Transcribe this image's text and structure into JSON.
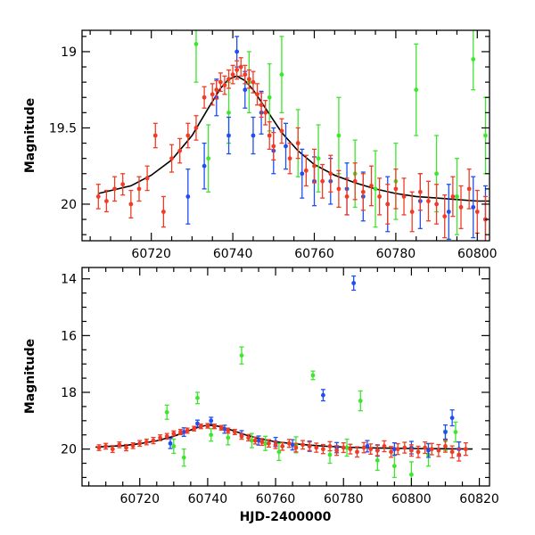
{
  "chart_data": [
    {
      "type": "scatter",
      "panel": "top",
      "xlabel": "",
      "ylabel": "Magnitude",
      "xlim": [
        60703,
        60803
      ],
      "ylim": [
        20.24,
        18.86
      ],
      "y_inverted": true,
      "x_ticks": [
        60720,
        60740,
        60760,
        60780,
        60800
      ],
      "x_tick_labels": [
        "60720",
        "60740",
        "60760",
        "60780",
        "60800"
      ],
      "y_ticks": [
        19,
        19.5,
        20
      ],
      "y_tick_labels": [
        "19",
        "19.5",
        "20"
      ],
      "grid": false,
      "colors": {
        "red": "#f03c24",
        "blue": "#1f4ff0",
        "green": "#3fe52e",
        "model": "#000000"
      },
      "model_curve": {
        "x": [
          60707,
          60715,
          60720,
          60725,
          60730,
          60734,
          60737,
          60739,
          60741,
          60743,
          60745,
          60748,
          60752,
          60756,
          60760,
          60765,
          60770,
          60775,
          60780,
          60785,
          60790,
          60795,
          60800,
          60803
        ],
        "y": [
          19.93,
          19.88,
          19.81,
          19.71,
          19.55,
          19.37,
          19.24,
          19.18,
          19.16,
          19.19,
          19.25,
          19.37,
          19.53,
          19.65,
          19.74,
          19.81,
          19.86,
          19.9,
          19.93,
          19.95,
          19.96,
          19.97,
          19.98,
          19.98
        ]
      },
      "series": [
        {
          "color": "red",
          "x": [
            60707,
            60709,
            60711,
            60713,
            60715,
            60717,
            60719,
            60721,
            60723,
            60725,
            60727,
            60729,
            60731,
            60733,
            60735,
            60736,
            60737,
            60738,
            60739,
            60740,
            60741,
            60742,
            60743,
            60744,
            60745,
            60746,
            60747,
            60748,
            60749,
            60750,
            60752,
            60754,
            60756,
            60758,
            60760,
            60762,
            60764,
            60766,
            60768,
            60770,
            60772,
            60774,
            60776,
            60778,
            60780,
            60782,
            60784,
            60786,
            60788,
            60790,
            60792,
            60794,
            60796,
            60798,
            60800,
            60802
          ],
          "y": [
            19.95,
            19.98,
            19.9,
            19.87,
            20.0,
            19.9,
            19.83,
            19.55,
            20.05,
            19.7,
            19.65,
            19.55,
            19.5,
            19.3,
            19.28,
            19.25,
            19.2,
            19.22,
            19.18,
            19.15,
            19.12,
            19.1,
            19.15,
            19.18,
            19.2,
            19.28,
            19.35,
            19.4,
            19.55,
            19.62,
            19.52,
            19.7,
            19.6,
            19.78,
            19.75,
            19.85,
            19.8,
            19.9,
            19.95,
            19.85,
            19.92,
            19.88,
            19.95,
            20.0,
            19.9,
            19.95,
            20.05,
            19.92,
            19.98,
            20.0,
            20.08,
            19.95,
            20.02,
            19.9,
            20.05,
            20.1
          ],
          "yerr": [
            0.08,
            0.07,
            0.08,
            0.07,
            0.09,
            0.08,
            0.08,
            0.08,
            0.1,
            0.09,
            0.08,
            0.08,
            0.08,
            0.07,
            0.07,
            0.06,
            0.06,
            0.06,
            0.06,
            0.06,
            0.06,
            0.06,
            0.06,
            0.06,
            0.07,
            0.07,
            0.08,
            0.08,
            0.09,
            0.09,
            0.08,
            0.1,
            0.1,
            0.1,
            0.11,
            0.11,
            0.12,
            0.12,
            0.12,
            0.12,
            0.12,
            0.13,
            0.12,
            0.13,
            0.13,
            0.12,
            0.13,
            0.12,
            0.13,
            0.13,
            0.14,
            0.13,
            0.14,
            0.13,
            0.14,
            0.15
          ]
        },
        {
          "color": "blue",
          "x": [
            60729,
            60733,
            60736,
            60739,
            60741,
            60743,
            60745,
            60747,
            60750,
            60753,
            60757,
            60760,
            60764,
            60768,
            60772,
            60778,
            60786,
            60793,
            60799,
            60802
          ],
          "y": [
            19.95,
            19.75,
            19.3,
            19.55,
            19.0,
            19.25,
            19.55,
            19.4,
            19.65,
            19.62,
            19.8,
            19.85,
            19.85,
            19.9,
            19.95,
            20.0,
            19.98,
            20.05,
            20.02,
            20.1
          ],
          "yerr": [
            0.18,
            0.15,
            0.12,
            0.12,
            0.1,
            0.12,
            0.12,
            0.14,
            0.15,
            0.15,
            0.16,
            0.16,
            0.15,
            0.17,
            0.16,
            0.18,
            0.18,
            0.18,
            0.2,
            0.22
          ]
        },
        {
          "color": "green",
          "x": [
            60731,
            60734,
            60739,
            60744,
            60749,
            60752,
            60756,
            60761,
            60766,
            60770,
            60775,
            60780,
            60785,
            60790,
            60795,
            60799,
            60802
          ],
          "y": [
            18.95,
            19.7,
            19.4,
            19.2,
            19.3,
            19.15,
            19.6,
            19.7,
            19.55,
            19.8,
            19.9,
            19.85,
            19.25,
            19.8,
            19.95,
            19.05,
            19.55
          ],
          "yerr": [
            0.25,
            0.22,
            0.2,
            0.2,
            0.22,
            0.25,
            0.22,
            0.22,
            0.25,
            0.22,
            0.25,
            0.25,
            0.3,
            0.25,
            0.25,
            0.2,
            0.25
          ]
        }
      ]
    },
    {
      "type": "scatter",
      "panel": "bottom",
      "xlabel": "HJD-2400000",
      "ylabel": "Magnitude",
      "xlim": [
        60703,
        60823
      ],
      "ylim": [
        21.3,
        13.6
      ],
      "y_inverted": true,
      "x_ticks": [
        60720,
        60740,
        60760,
        60780,
        60800,
        60820
      ],
      "x_tick_labels": [
        "60720",
        "60740",
        "60760",
        "60780",
        "60800",
        "60820"
      ],
      "y_ticks": [
        14,
        16,
        18,
        20
      ],
      "y_tick_labels": [
        "14",
        "16",
        "18",
        "20"
      ],
      "grid": false,
      "colors": {
        "red": "#f03c24",
        "blue": "#1f4ff0",
        "green": "#3fe52e",
        "model": "#000000"
      },
      "model_curve": {
        "x": [
          60707,
          60715,
          60720,
          60725,
          60730,
          60734,
          60737,
          60739,
          60741,
          60743,
          60745,
          60748,
          60752,
          60756,
          60760,
          60765,
          60770,
          60775,
          60780,
          60785,
          60790,
          60795,
          60800,
          60810,
          60818
        ],
        "y": [
          19.93,
          19.88,
          19.81,
          19.71,
          19.55,
          19.37,
          19.24,
          19.18,
          19.16,
          19.19,
          19.25,
          19.37,
          19.53,
          19.65,
          19.74,
          19.81,
          19.86,
          19.9,
          19.93,
          19.95,
          19.96,
          19.97,
          19.98,
          19.99,
          20.0
        ]
      },
      "series": [
        {
          "color": "red",
          "x": [
            60708,
            60710,
            60712,
            60714,
            60716,
            60718,
            60720,
            60722,
            60724,
            60726,
            60728,
            60730,
            60732,
            60734,
            60736,
            60738,
            60740,
            60742,
            60744,
            60746,
            60748,
            60750,
            60752,
            60754,
            60756,
            60758,
            60760,
            60762,
            60764,
            60766,
            60768,
            60770,
            60772,
            60774,
            60776,
            60778,
            60780,
            60782,
            60784,
            60786,
            60788,
            60790,
            60792,
            60794,
            60796,
            60798,
            60800,
            60802,
            60804,
            60806,
            60808,
            60810,
            60812,
            60814,
            60816
          ],
          "y": [
            19.95,
            19.9,
            20.0,
            19.85,
            19.95,
            19.88,
            19.8,
            19.75,
            19.7,
            19.6,
            19.55,
            19.45,
            19.4,
            19.35,
            19.28,
            19.2,
            19.18,
            19.2,
            19.25,
            19.35,
            19.4,
            19.55,
            19.6,
            19.7,
            19.75,
            19.8,
            19.85,
            19.9,
            19.8,
            19.95,
            19.85,
            19.9,
            19.95,
            20.0,
            19.9,
            20.05,
            19.95,
            20.0,
            20.1,
            19.95,
            20.0,
            20.05,
            19.9,
            20.1,
            20.0,
            19.95,
            20.05,
            20.1,
            19.95,
            20.0,
            20.05,
            19.9,
            20.1,
            20.2,
            20.0
          ],
          "yerr": [
            0.1,
            0.1,
            0.12,
            0.1,
            0.11,
            0.1,
            0.1,
            0.1,
            0.11,
            0.1,
            0.1,
            0.09,
            0.09,
            0.09,
            0.08,
            0.08,
            0.08,
            0.08,
            0.08,
            0.09,
            0.09,
            0.1,
            0.11,
            0.12,
            0.12,
            0.13,
            0.13,
            0.14,
            0.14,
            0.15,
            0.15,
            0.15,
            0.16,
            0.16,
            0.16,
            0.17,
            0.17,
            0.17,
            0.18,
            0.18,
            0.18,
            0.18,
            0.19,
            0.19,
            0.19,
            0.19,
            0.2,
            0.2,
            0.2,
            0.2,
            0.21,
            0.21,
            0.21,
            0.22,
            0.22
          ]
        },
        {
          "color": "blue",
          "x": [
            60729,
            60733,
            60737,
            60741,
            60745,
            60750,
            60755,
            60760,
            60765,
            60770,
            60774,
            60778,
            60783,
            60787,
            60790,
            60795,
            60800,
            60805,
            60810,
            60812,
            60814
          ],
          "y": [
            19.8,
            19.4,
            19.1,
            19.0,
            19.3,
            19.5,
            19.7,
            19.75,
            19.85,
            19.9,
            18.1,
            19.95,
            14.15,
            19.9,
            20.05,
            20.0,
            19.95,
            20.05,
            19.4,
            18.9,
            20.0
          ],
          "yerr": [
            0.18,
            0.15,
            0.12,
            0.12,
            0.14,
            0.15,
            0.16,
            0.16,
            0.18,
            0.18,
            0.2,
            0.18,
            0.25,
            0.2,
            0.2,
            0.22,
            0.22,
            0.24,
            0.25,
            0.28,
            0.25
          ]
        },
        {
          "color": "green",
          "x": [
            60728,
            60730,
            60733,
            60737,
            60741,
            60746,
            60750,
            60753,
            60757,
            60761,
            60766,
            60771,
            60776,
            60781,
            60785,
            60790,
            60795,
            60800,
            60805,
            60810,
            60813
          ],
          "y": [
            18.7,
            19.9,
            20.3,
            18.2,
            19.5,
            19.6,
            16.7,
            19.7,
            19.8,
            20.1,
            19.85,
            17.4,
            20.2,
            19.95,
            18.3,
            20.4,
            20.6,
            20.9,
            20.2,
            19.7,
            19.4
          ],
          "yerr": [
            0.25,
            0.25,
            0.3,
            0.2,
            0.22,
            0.25,
            0.3,
            0.25,
            0.25,
            0.3,
            0.28,
            0.15,
            0.3,
            0.3,
            0.35,
            0.35,
            0.4,
            0.45,
            0.4,
            0.35,
            0.35
          ]
        }
      ]
    }
  ]
}
